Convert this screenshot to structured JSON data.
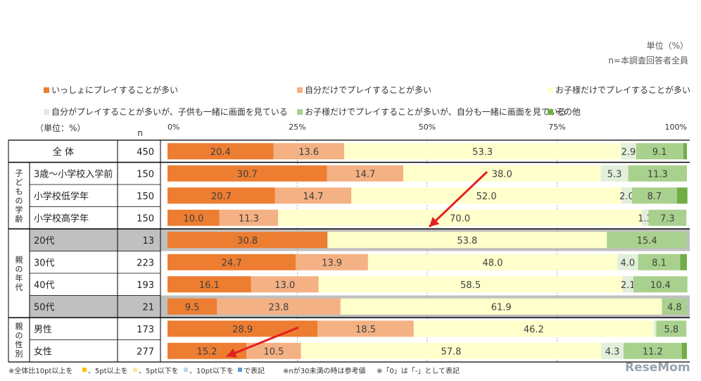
{
  "unit_note": "単位（%）",
  "base_note": "n=本調査回答者全員",
  "table_unit": "（単位：%）",
  "n_header": "n",
  "axis_ticks": [
    "0%",
    "25%",
    "50%",
    "75%",
    "100%"
  ],
  "footnote_1": "※全体比10pt以上を",
  "footnote_2": "、5pt以上を",
  "footnote_3": "、5pt以下を",
  "footnote_4": "、10pt以下を",
  "footnote_5": "で表記",
  "footnote_6": "※nが30未満の時は参考値",
  "footnote_7": "※「0」は「-」として表記",
  "watermark": "ReseMom",
  "colors": {
    "c1": "#ED7D31",
    "c2": "#F4B183",
    "c3": "#FFFFCC",
    "c4": "#E2EFDA",
    "c5": "#A9D18E",
    "c6": "#70AD47",
    "grey_row": "#C0C0C0",
    "arrow": "#E3211C",
    "mark_high": "#FFC000",
    "mark_mid": "#FFE699",
    "mark_low": "#BDD7EE",
    "mark_lower": "#5B9BD5"
  },
  "chart_data": {
    "type": "bar",
    "stacked": true,
    "orientation": "horizontal",
    "xlim": [
      0,
      100
    ],
    "series": [
      {
        "name": "いっしょにプレイすることが多い",
        "values": [
          20.4,
          30.7,
          20.7,
          10.0,
          30.8,
          24.7,
          16.1,
          9.5,
          28.9,
          15.2
        ]
      },
      {
        "name": "自分だけでプレイすることが多い",
        "values": [
          13.6,
          14.7,
          14.7,
          11.3,
          0,
          13.9,
          13.0,
          23.8,
          18.5,
          10.5
        ]
      },
      {
        "name": "お子様だけでプレイすることが多い",
        "values": [
          53.3,
          38.0,
          52.0,
          70.0,
          53.8,
          48.0,
          58.5,
          61.9,
          46.2,
          57.8
        ]
      },
      {
        "name": "自分がプレイすることが多いが、子供も一緒に画面を見ている",
        "values": [
          2.9,
          5.3,
          2.0,
          1.3,
          0,
          4.0,
          2.1,
          0,
          0.5,
          4.3
        ]
      },
      {
        "name": "お子様だけでプレイすることが多いが、自分も一緒に画面を見ている",
        "values": [
          9.1,
          11.3,
          8.7,
          7.3,
          15.4,
          8.1,
          10.4,
          4.8,
          5.8,
          11.2
        ]
      },
      {
        "name": "その他",
        "values": [
          0.7,
          0,
          2.0,
          0,
          0,
          1.3,
          0,
          0,
          0,
          1.0
        ]
      }
    ],
    "labels": [
      [
        "20.4",
        "13.6",
        "53.3",
        "2.9",
        "9.1",
        ""
      ],
      [
        "30.7",
        "14.7",
        "38.0",
        "5.3",
        "11.3",
        ""
      ],
      [
        "20.7",
        "14.7",
        "52.0",
        "2.0",
        "8.7",
        ""
      ],
      [
        "10.0",
        "11.3",
        "70.0",
        "1.3",
        "7.3",
        ""
      ],
      [
        "30.8",
        "",
        "53.8",
        "",
        "15.4",
        ""
      ],
      [
        "24.7",
        "13.9",
        "48.0",
        "4.0",
        "8.1",
        ""
      ],
      [
        "16.1",
        "13.0",
        "58.5",
        "2.1",
        "10.4",
        ""
      ],
      [
        "9.5",
        "23.8",
        "61.9",
        "",
        "4.8",
        ""
      ],
      [
        "28.9",
        "18.5",
        "46.2",
        "",
        "5.8",
        ""
      ],
      [
        "15.2",
        "10.5",
        "57.8",
        "4.3",
        "11.2",
        ""
      ]
    ],
    "rows": [
      {
        "label": "全 体",
        "n": "450"
      },
      {
        "label": "3歳～小学校入学前",
        "n": "150"
      },
      {
        "label": "小学校低学年",
        "n": "150"
      },
      {
        "label": "小学校高学年",
        "n": "150"
      },
      {
        "label": "20代",
        "n": "13"
      },
      {
        "label": "30代",
        "n": "223"
      },
      {
        "label": "40代",
        "n": "193"
      },
      {
        "label": "50代",
        "n": "21"
      },
      {
        "label": "男性",
        "n": "173"
      },
      {
        "label": "女性",
        "n": "277"
      }
    ],
    "groups": [
      {
        "label": "子ども の学齢",
        "chars": [
          "子",
          "ど",
          "も",
          "の",
          "学",
          "齢"
        ]
      },
      {
        "label": "親の年代",
        "chars": [
          "親",
          "の",
          "年",
          "代"
        ]
      },
      {
        "label": "親の性別",
        "chars": [
          "親",
          "の",
          "性",
          "別"
        ]
      }
    ],
    "reference_rows": [
      "20代",
      "50代"
    ],
    "highlight_marks": [
      {
        "row": "3歳～小学校入学前",
        "series": "お子様だけでプレイすることが多い",
        "mark": "arrow-down"
      },
      {
        "row": "女性",
        "series": "いっしょにプレイすることが多い",
        "mark": "arrow-down"
      }
    ]
  }
}
